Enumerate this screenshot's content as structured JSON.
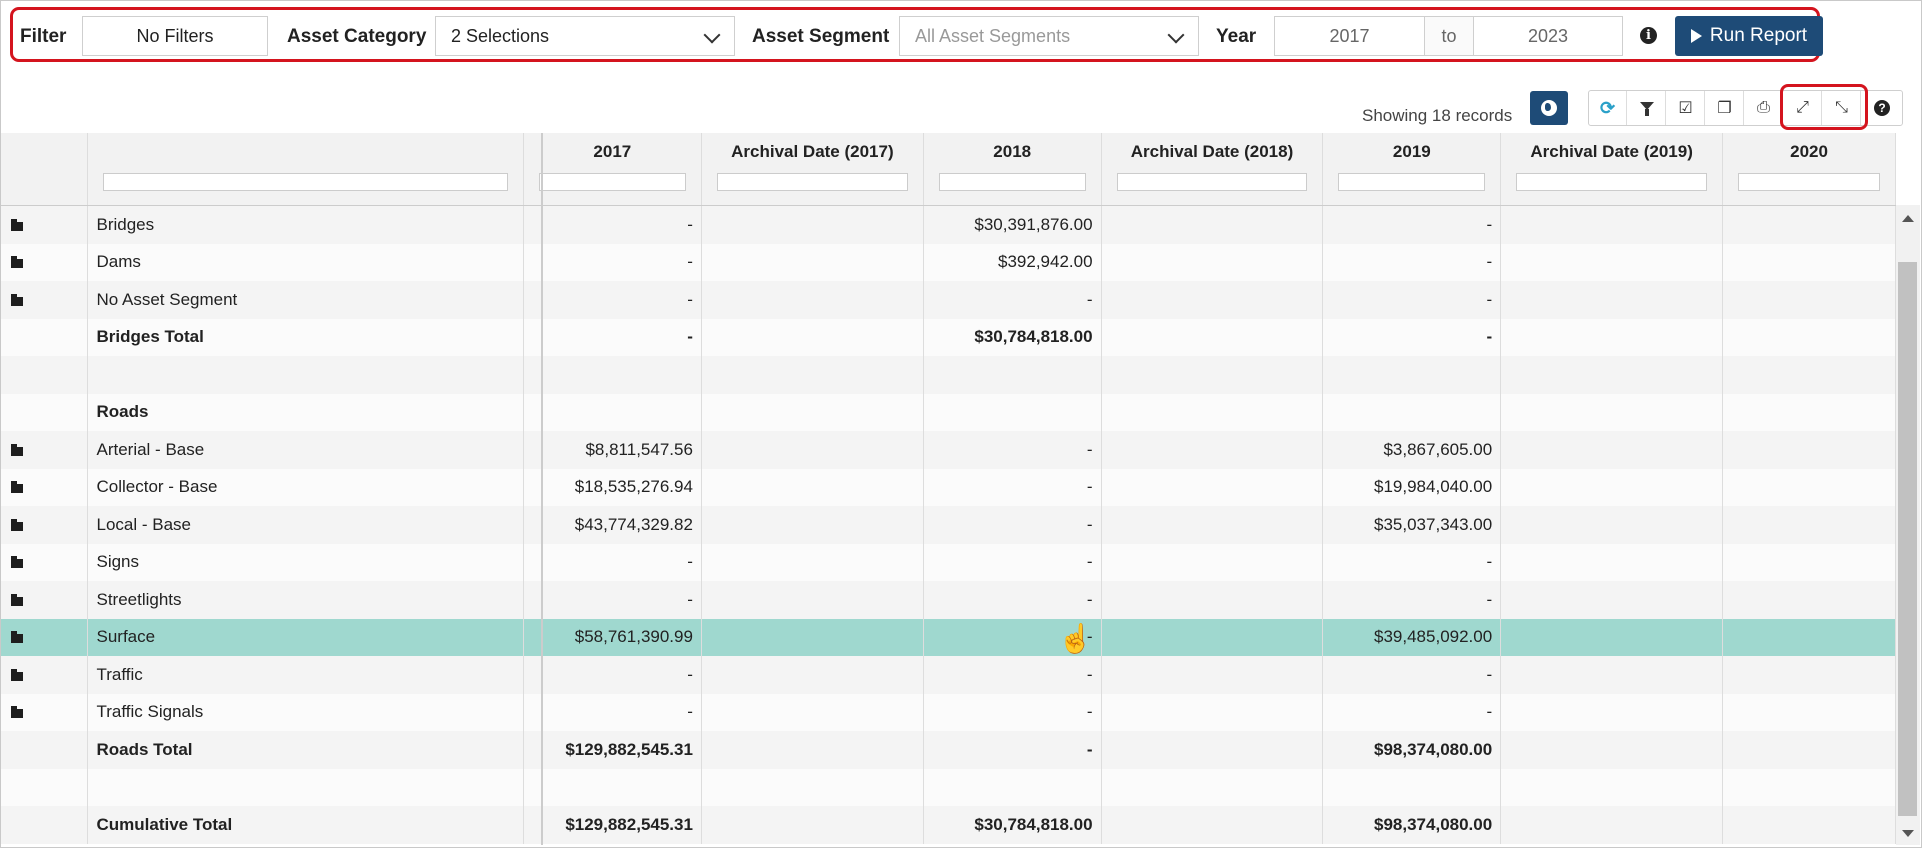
{
  "filter_bar": {
    "filter_label": "Filter",
    "filter_value": "No Filters",
    "asset_category_label": "Asset Category",
    "asset_category_value": "2 Selections",
    "asset_segment_label": "Asset Segment",
    "asset_segment_value": "All Asset Segments",
    "year_label": "Year",
    "year_from": "2017",
    "year_to_label": "to",
    "year_to": "2023",
    "info_icon": "i",
    "run_report_label": "Run Report"
  },
  "toolbar": {
    "records_text": "Showing 18 records",
    "icons": [
      "globe-icon",
      "refresh-icon",
      "filter-icon",
      "check-icon",
      "copy-icon",
      "print-icon",
      "expand-icon",
      "collapse-icon",
      "help-icon"
    ],
    "help_glyph": "?"
  },
  "grid": {
    "columns": [
      "",
      "",
      "2017",
      "Archival Date (2017)",
      "2018",
      "Archival Date (2018)",
      "2019",
      "Archival Date (2019)",
      "2020"
    ],
    "rows": [
      {
        "folder": true,
        "name": "Bridges",
        "c2017": "-",
        "c2018": "$30,391,876.00",
        "c2019": "-"
      },
      {
        "folder": true,
        "name": "Dams",
        "c2017": "-",
        "c2018": "$392,942.00",
        "c2019": "-"
      },
      {
        "folder": true,
        "name": "No Asset Segment",
        "c2017": "-",
        "c2018": "-",
        "c2019": "-"
      },
      {
        "folder": false,
        "name": "Bridges Total",
        "c2017": "-",
        "c2018": "$30,784,818.00",
        "c2019": "-",
        "bold": true
      },
      {
        "folder": false,
        "name": "",
        "c2017": "",
        "c2018": "",
        "c2019": ""
      },
      {
        "folder": false,
        "name": "Roads",
        "c2017": "",
        "c2018": "",
        "c2019": "",
        "bold": true
      },
      {
        "folder": true,
        "name": "Arterial - Base",
        "c2017": "$8,811,547.56",
        "c2018": "-",
        "c2019": "$3,867,605.00"
      },
      {
        "folder": true,
        "name": "Collector - Base",
        "c2017": "$18,535,276.94",
        "c2018": "-",
        "c2019": "$19,984,040.00"
      },
      {
        "folder": true,
        "name": "Local - Base",
        "c2017": "$43,774,329.82",
        "c2018": "-",
        "c2019": "$35,037,343.00"
      },
      {
        "folder": true,
        "name": "Signs",
        "c2017": "-",
        "c2018": "-",
        "c2019": "-"
      },
      {
        "folder": true,
        "name": "Streetlights",
        "c2017": "-",
        "c2018": "-",
        "c2019": "-"
      },
      {
        "folder": true,
        "name": "Surface",
        "c2017": "$58,761,390.99",
        "c2018": "-",
        "c2019": "$39,485,092.00",
        "selected": true
      },
      {
        "folder": true,
        "name": "Traffic",
        "c2017": "-",
        "c2018": "-",
        "c2019": "-"
      },
      {
        "folder": true,
        "name": "Traffic Signals",
        "c2017": "-",
        "c2018": "-",
        "c2019": "-"
      },
      {
        "folder": false,
        "name": "Roads Total",
        "c2017": "$129,882,545.31",
        "c2018": "-",
        "c2019": "$98,374,080.00",
        "bold": true
      },
      {
        "folder": false,
        "name": "",
        "c2017": "",
        "c2018": "",
        "c2019": ""
      },
      {
        "folder": false,
        "name": "Cumulative Total",
        "c2017": "$129,882,545.31",
        "c2018": "$30,784,818.00",
        "c2019": "$98,374,080.00",
        "bold": true
      }
    ]
  },
  "colors": {
    "accent": "#1e4b77",
    "highlight_border": "#d4141e",
    "selected_row": "#9fd8cf"
  }
}
